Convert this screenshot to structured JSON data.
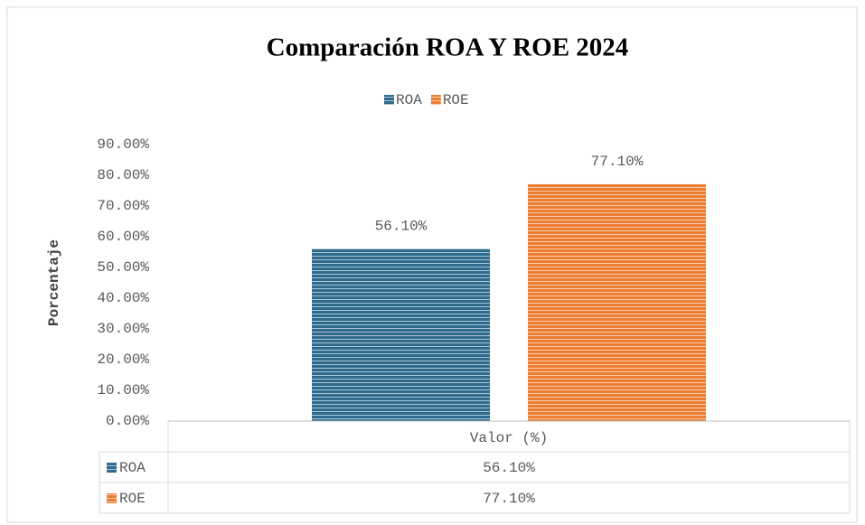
{
  "chart_data": {
    "type": "bar",
    "title": "Comparación ROA Y ROE 2024",
    "y_label": "Porcentaje",
    "categories": [
      "Valor (%)"
    ],
    "series": [
      {
        "name": "ROA",
        "color": "#2e6b8e",
        "values": [
          56.1
        ],
        "value_labels": [
          "56.10%"
        ]
      },
      {
        "name": "ROE",
        "color": "#ed7d31",
        "values": [
          77.1
        ],
        "value_labels": [
          "77.10%"
        ]
      }
    ],
    "ylim": [
      0,
      90
    ],
    "yticks": [
      {
        "value": 0,
        "label": "0.00%"
      },
      {
        "value": 10,
        "label": "10.00%"
      },
      {
        "value": 20,
        "label": "20.00%"
      },
      {
        "value": 30,
        "label": "30.00%"
      },
      {
        "value": 40,
        "label": "40.00%"
      },
      {
        "value": 50,
        "label": "50.00%"
      },
      {
        "value": 60,
        "label": "60.00%"
      },
      {
        "value": 70,
        "label": "70.00%"
      },
      {
        "value": 80,
        "label": "80.00%"
      },
      {
        "value": 90,
        "label": "90.00%"
      }
    ],
    "grid": false,
    "legend": "top",
    "data_table": true
  }
}
